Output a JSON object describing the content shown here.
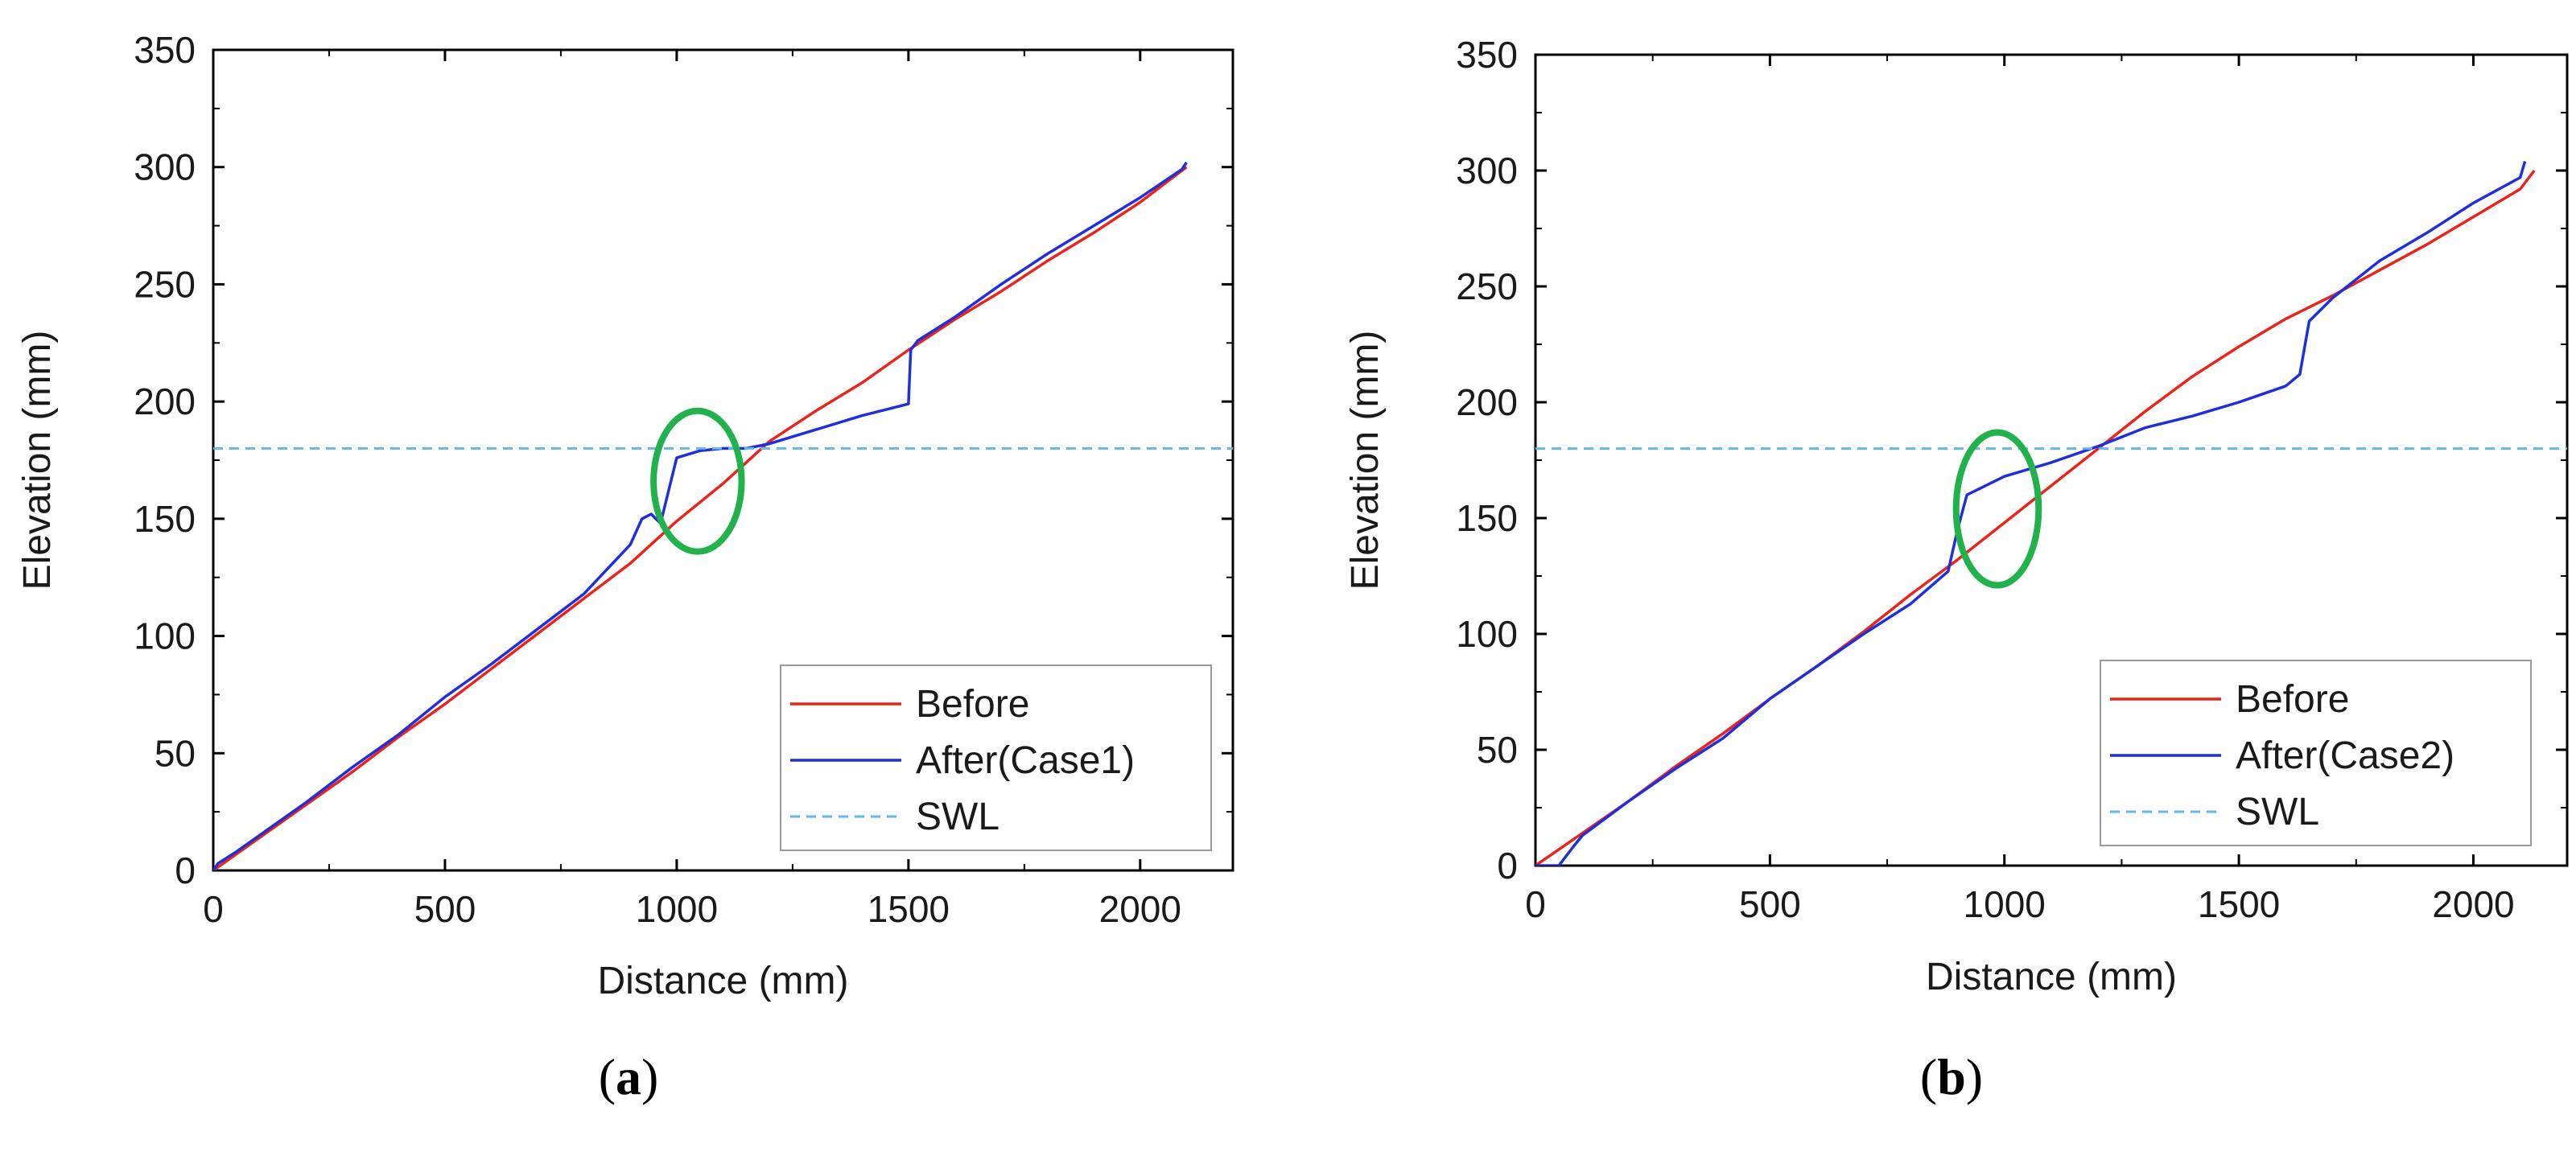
{
  "chart_data": [
    {
      "type": "line",
      "panel_label": "(a)",
      "panel_letter": "a",
      "xlabel": "Distance (mm)",
      "ylabel": "Elevation (mm)",
      "xlim": [
        0,
        2200
      ],
      "ylim": [
        0,
        350
      ],
      "xticks": [
        0,
        500,
        1000,
        1500,
        2000
      ],
      "yticks": [
        0,
        50,
        100,
        150,
        200,
        250,
        300,
        350
      ],
      "legend_position": "bottom-right",
      "annotation": {
        "type": "circle",
        "color": "#22b24c",
        "center": [
          1045,
          166
        ],
        "radius_x": 95,
        "radius_y": 30
      },
      "series": [
        {
          "name": "Before",
          "color": "#e8241c",
          "dash": "solid",
          "x": [
            0,
            100,
            200,
            300,
            400,
            500,
            600,
            700,
            800,
            900,
            1000,
            1100,
            1200,
            1300,
            1400,
            1500,
            1600,
            1700,
            1800,
            1900,
            2000,
            2100
          ],
          "y": [
            0,
            14,
            28,
            42,
            57,
            71,
            86,
            101,
            116,
            131,
            149,
            165,
            183,
            196,
            208,
            222,
            235,
            247,
            260,
            272,
            285,
            300
          ]
        },
        {
          "name": "After(Case1)",
          "color": "#1f2fd9",
          "dash": "solid",
          "x": [
            0,
            10,
            50,
            100,
            200,
            300,
            400,
            500,
            600,
            700,
            800,
            900,
            925,
            945,
            965,
            1000,
            1050,
            1100,
            1150,
            1200,
            1300,
            1400,
            1500,
            1505,
            1520,
            1600,
            1700,
            1800,
            1900,
            2000,
            2090,
            2100
          ],
          "y": [
            0,
            3,
            8,
            15,
            29,
            44,
            58,
            74,
            88,
            103,
            118,
            139,
            150,
            152,
            148,
            176,
            179,
            180,
            180,
            182,
            188,
            194,
            199,
            222,
            226,
            236,
            250,
            263,
            275,
            287,
            299,
            302
          ]
        },
        {
          "name": "SWL",
          "color": "#61b8ee",
          "dash": "dashed",
          "x": [
            0,
            2200
          ],
          "y": [
            180,
            180
          ]
        }
      ]
    },
    {
      "type": "line",
      "panel_label": "(b)",
      "panel_letter": "b",
      "xlabel": "Distance (mm)",
      "ylabel": "Elevation (mm)",
      "xlim": [
        0,
        2200
      ],
      "ylim": [
        0,
        350
      ],
      "xticks": [
        0,
        500,
        1000,
        1500,
        2000
      ],
      "yticks": [
        0,
        50,
        100,
        150,
        200,
        250,
        300,
        350
      ],
      "legend_position": "bottom-right",
      "annotation": {
        "type": "circle",
        "color": "#22b24c",
        "center": [
          985,
          154
        ],
        "radius_x": 88,
        "radius_y": 33
      },
      "series": [
        {
          "name": "Before",
          "color": "#e8241c",
          "dash": "solid",
          "x": [
            0,
            100,
            200,
            300,
            400,
            500,
            600,
            700,
            800,
            900,
            1000,
            1100,
            1200,
            1300,
            1400,
            1500,
            1600,
            1700,
            1800,
            1900,
            2000,
            2100,
            2130
          ],
          "y": [
            0,
            14,
            28,
            43,
            57,
            72,
            86,
            101,
            117,
            132,
            148,
            164,
            180,
            196,
            211,
            224,
            236,
            246,
            257,
            268,
            280,
            292,
            300
          ]
        },
        {
          "name": "After(Case2)",
          "color": "#1f2fd9",
          "dash": "solid",
          "x": [
            0,
            50,
            80,
            100,
            200,
            300,
            400,
            500,
            600,
            700,
            800,
            880,
            900,
            920,
            1000,
            1100,
            1200,
            1300,
            1400,
            1500,
            1600,
            1630,
            1650,
            1700,
            1800,
            1900,
            2000,
            2100,
            2110
          ],
          "y": [
            0,
            0,
            8,
            13,
            28,
            42,
            55,
            72,
            86,
            100,
            113,
            127,
            145,
            160,
            168,
            174,
            181,
            189,
            194,
            200,
            207,
            212,
            235,
            245,
            261,
            273,
            286,
            297,
            304
          ]
        },
        {
          "name": "SWL",
          "color": "#61b8ee",
          "dash": "dashed",
          "x": [
            0,
            2200
          ],
          "y": [
            180,
            180
          ]
        }
      ]
    }
  ]
}
